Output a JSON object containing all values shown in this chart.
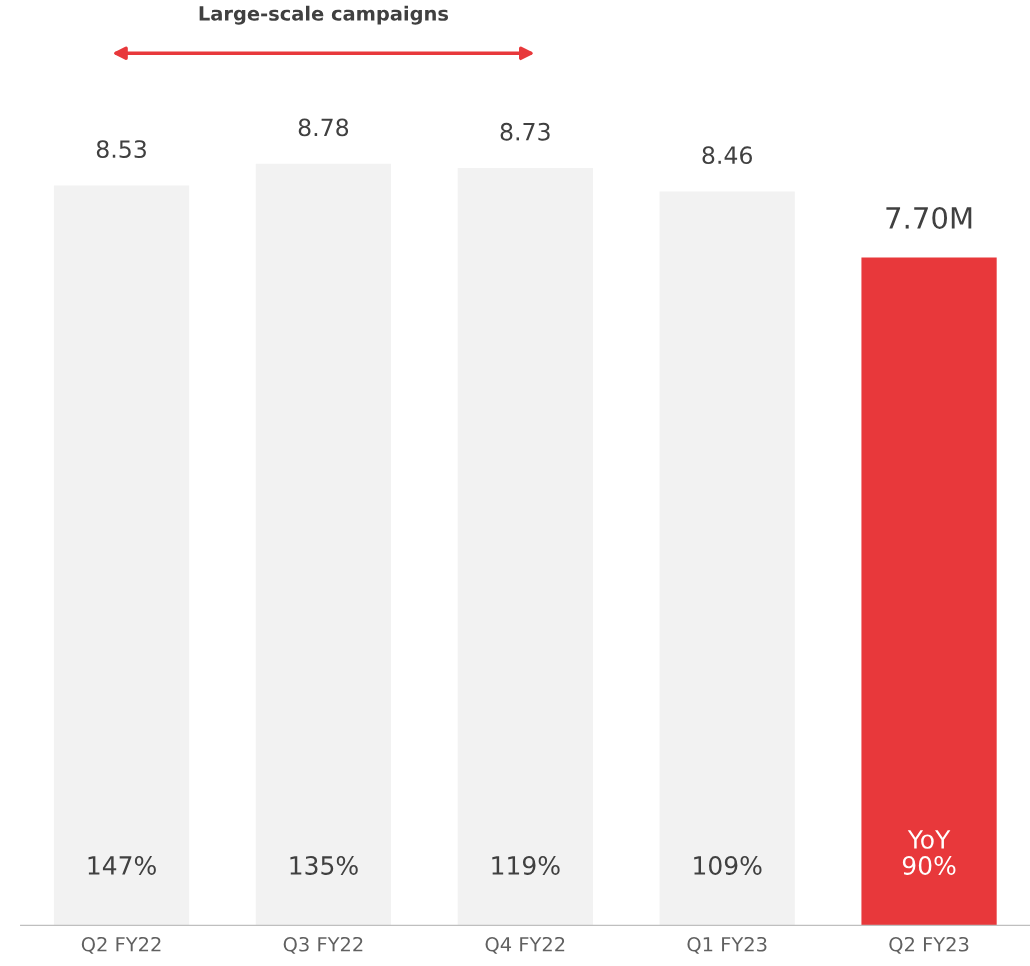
{
  "chart_data": {
    "type": "bar",
    "categories": [
      "Q2 FY22",
      "Q3 FY22",
      "Q4 FY22",
      "Q1 FY23",
      "Q2 FY23"
    ],
    "values": [
      8.53,
      8.78,
      8.73,
      8.46,
      7.7
    ],
    "colors": [
      "#f2f2f2",
      "#f2f2f2",
      "#f2f2f2",
      "#f2f2f2",
      "#e8383b"
    ],
    "value_labels": [
      "8.53",
      "8.78",
      "8.73",
      "8.46",
      "7.70M"
    ],
    "annotations": [
      "Large-scale campaigns",
      "147%",
      "135%",
      "119%",
      "109%",
      "YoY\n90%"
    ],
    "grid": false,
    "tick_labels": "x"
  }
}
